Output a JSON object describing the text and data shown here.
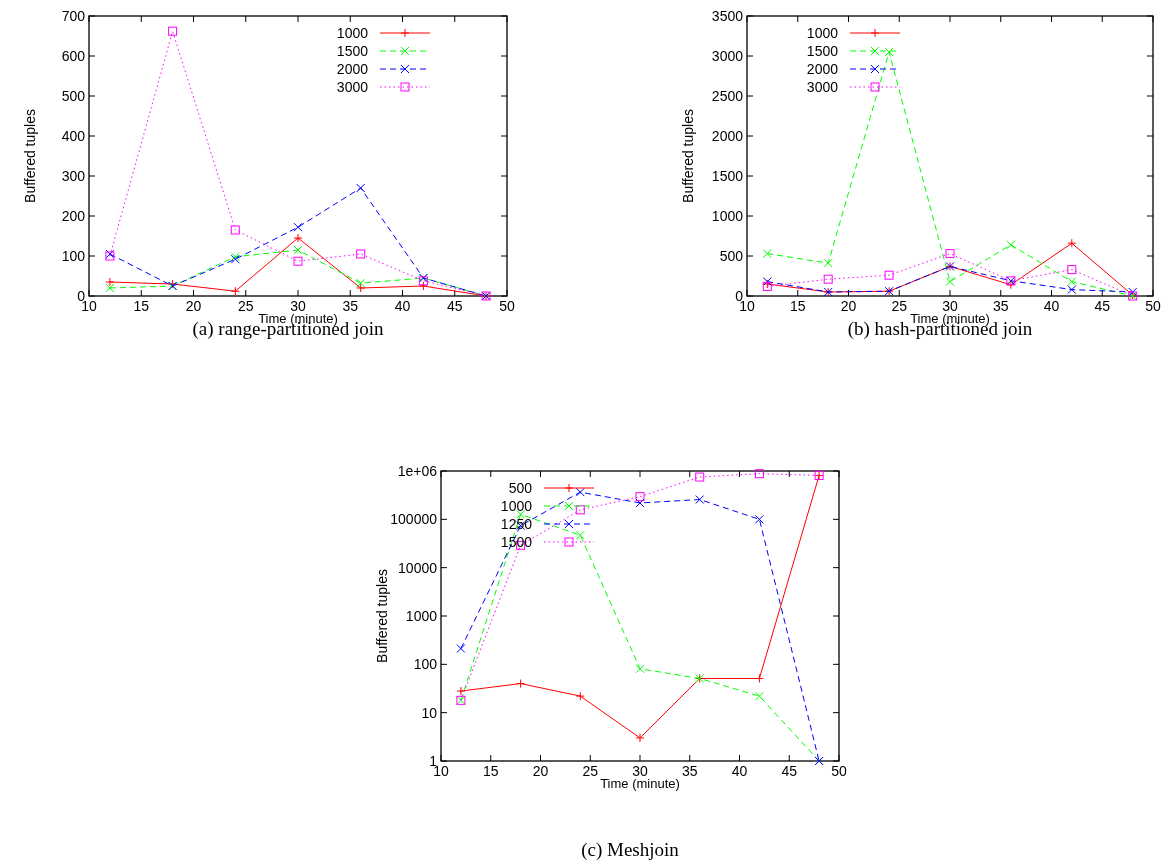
{
  "chart_data": [
    {
      "type": "line",
      "title": "(a)  range-partitioned join",
      "xlabel": "Time (minute)",
      "ylabel": "Buffered tuples",
      "x": [
        12,
        18,
        24,
        30,
        36,
        42,
        48
      ],
      "xlim": [
        10,
        50
      ],
      "xticks": [
        10,
        15,
        20,
        25,
        30,
        35,
        40,
        45,
        50
      ],
      "ylim": [
        0,
        700
      ],
      "yticks": [
        0,
        100,
        200,
        300,
        400,
        500,
        600,
        700
      ],
      "grid": false,
      "legend": "top right",
      "series": [
        {
          "name": "1000",
          "color": "#ff0000",
          "marker": "plus",
          "line_style": "solid",
          "values": [
            35,
            30,
            12,
            145,
            20,
            25,
            0
          ]
        },
        {
          "name": "1500",
          "color": "#00ff00",
          "marker": "cross",
          "line_style": "dashed",
          "values": [
            20,
            25,
            98,
            115,
            32,
            45,
            0
          ]
        },
        {
          "name": "2000",
          "color": "#0000ff",
          "marker": "cross",
          "line_style": "dashed",
          "values": [
            105,
            25,
            92,
            172,
            270,
            45,
            0
          ]
        },
        {
          "name": "3000",
          "color": "#ff00ff",
          "marker": "square",
          "line_style": "dotted",
          "values": [
            100,
            662,
            165,
            87,
            105,
            38,
            0
          ]
        }
      ]
    },
    {
      "type": "line",
      "title": "(b)  hash-partitioned join",
      "xlabel": "Time (minute)",
      "ylabel": "Buffered tuples",
      "x": [
        12,
        18,
        24,
        30,
        36,
        42,
        48
      ],
      "xlim": [
        10,
        50
      ],
      "xticks": [
        10,
        15,
        20,
        25,
        30,
        35,
        40,
        45,
        50
      ],
      "ylim": [
        0,
        3500
      ],
      "yticks": [
        0,
        500,
        1000,
        1500,
        2000,
        2500,
        3000,
        3500
      ],
      "grid": false,
      "legend": "top left",
      "series": [
        {
          "name": "1000",
          "color": "#ff0000",
          "marker": "plus",
          "line_style": "solid",
          "values": [
            150,
            50,
            60,
            370,
            140,
            660,
            10
          ]
        },
        {
          "name": "1500",
          "color": "#00ff00",
          "marker": "cross",
          "line_style": "dashed",
          "values": [
            530,
            410,
            3050,
            180,
            640,
            180,
            0
          ]
        },
        {
          "name": "2000",
          "color": "#0000ff",
          "marker": "cross",
          "line_style": "dashed",
          "values": [
            180,
            50,
            60,
            370,
            190,
            80,
            50
          ]
        },
        {
          "name": "3000",
          "color": "#ff00ff",
          "marker": "square",
          "line_style": "dotted",
          "values": [
            120,
            210,
            260,
            530,
            190,
            330,
            0
          ]
        }
      ]
    },
    {
      "type": "line",
      "title": "(c)  Meshjoin",
      "xlabel": "Time (minute)",
      "ylabel": "Buffered tuples",
      "x": [
        12,
        18,
        24,
        30,
        36,
        42,
        48
      ],
      "xlim": [
        10,
        50
      ],
      "xticks": [
        10,
        15,
        20,
        25,
        30,
        35,
        40,
        45,
        50
      ],
      "log": "y",
      "ylim": [
        1,
        1000000
      ],
      "yticks": [
        1,
        10,
        100,
        1000,
        10000,
        100000,
        {
          "value": 1000000,
          "label": "1e+06"
        }
      ],
      "grid": false,
      "legend": "top left",
      "series": [
        {
          "name": "500",
          "color": "#ff0000",
          "marker": "plus",
          "line_style": "solid",
          "values": [
            28,
            40,
            22,
            3,
            51,
            51,
            810000
          ]
        },
        {
          "name": "1000",
          "color": "#00ff00",
          "marker": "cross",
          "line_style": "dashed",
          "values": [
            18,
            127000,
            47000,
            81,
            51,
            22,
            1
          ]
        },
        {
          "name": "1250",
          "color": "#0000ff",
          "marker": "cross",
          "line_style": "dashed",
          "values": [
            212,
            74000,
            365000,
            218000,
            257000,
            100000,
            1
          ]
        },
        {
          "name": "1500",
          "color": "#ff00ff",
          "marker": "square",
          "line_style": "dotted",
          "values": [
            18,
            29000,
            157000,
            295000,
            750000,
            880000,
            810000
          ]
        }
      ]
    }
  ]
}
